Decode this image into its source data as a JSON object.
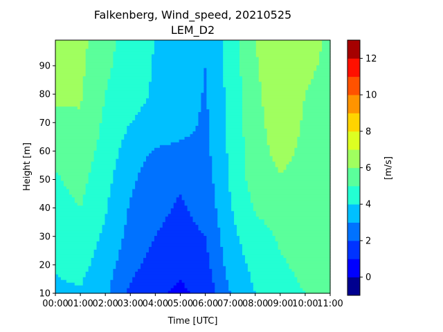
{
  "chart_data": {
    "type": "heatmap",
    "subtype": "filled-contour",
    "title_line1": "Falkenberg, Wind_speed, 20210525",
    "title_line2": "LEM_D2",
    "xlabel": "Time [UTC]",
    "ylabel": "Height [m]",
    "colorbar_label": "[m/s]",
    "xlim": [
      0,
      11
    ],
    "ylim": [
      10,
      99
    ],
    "x_ticks": [
      0,
      1,
      2,
      3,
      4,
      5,
      6,
      7,
      8,
      9,
      10,
      11
    ],
    "x_tick_labels": [
      "00:00",
      "01:00",
      "02:00",
      "03:00",
      "04:00",
      "05:00",
      "06:00",
      "07:00",
      "08:00",
      "09:00",
      "10:00",
      "11:00"
    ],
    "y_ticks": [
      10,
      20,
      30,
      40,
      50,
      60,
      70,
      80,
      90
    ],
    "y_tick_labels": [
      "10",
      "20",
      "30",
      "40",
      "50",
      "60",
      "70",
      "80",
      "90"
    ],
    "colorbar_ticks": [
      0,
      2,
      4,
      6,
      8,
      10,
      12
    ],
    "colorbar_tick_labels": [
      "0",
      "2",
      "4",
      "6",
      "8",
      "10",
      "12"
    ],
    "levels": [
      -1,
      0,
      1,
      2,
      3,
      4,
      5,
      6,
      7,
      8,
      9,
      10,
      11,
      12,
      13
    ],
    "level_colors": [
      "#00008f",
      "#0000ff",
      "#0033ff",
      "#0072ff",
      "#00c0ff",
      "#23ffd3",
      "#5bff9b",
      "#a0ff5f",
      "#ddff22",
      "#ffd400",
      "#ff9400",
      "#ff5200",
      "#ff1000",
      "#a50000"
    ],
    "grid": false,
    "x": [
      0,
      1,
      2,
      3,
      4,
      5,
      6,
      7,
      8,
      9,
      10,
      11
    ],
    "y": [
      10,
      20,
      30,
      40,
      50,
      60,
      70,
      80,
      90,
      99
    ],
    "z": [
      [
        3.8,
        3.9,
        3.2,
        1.8,
        1.2,
        0.8,
        1.3,
        3.0,
        4.0,
        4.7,
        5.0,
        5.3
      ],
      [
        4.1,
        4.3,
        3.5,
        2.3,
        1.6,
        1.2,
        1.7,
        3.4,
        4.3,
        4.9,
        5.2,
        5.4
      ],
      [
        4.4,
        4.7,
        3.8,
        2.7,
        2.0,
        1.7,
        2.0,
        3.7,
        4.6,
        5.1,
        5.3,
        5.5
      ],
      [
        4.6,
        5.0,
        4.1,
        2.9,
        2.2,
        1.9,
        2.3,
        3.9,
        5.1,
        5.4,
        5.5,
        5.6
      ],
      [
        4.9,
        5.3,
        4.3,
        3.2,
        2.4,
        2.1,
        2.5,
        4.1,
        5.5,
        5.9,
        5.7,
        5.6
      ],
      [
        5.2,
        5.6,
        4.6,
        3.5,
        2.9,
        2.7,
        2.7,
        4.2,
        5.6,
        6.3,
        5.8,
        5.7
      ],
      [
        5.7,
        5.9,
        4.8,
        4.0,
        3.7,
        3.5,
        2.8,
        4.3,
        5.7,
        6.5,
        5.9,
        5.8
      ],
      [
        6.2,
        6.1,
        5.0,
        4.3,
        3.9,
        3.7,
        2.9,
        4.3,
        5.8,
        6.6,
        6.0,
        5.8
      ],
      [
        6.6,
        6.2,
        5.2,
        4.5,
        3.9,
        3.8,
        3.0,
        4.4,
        5.9,
        6.7,
        6.1,
        5.9
      ],
      [
        7.0,
        6.3,
        5.3,
        4.6,
        4.0,
        3.9,
        3.0,
        4.4,
        6.0,
        6.8,
        6.2,
        5.9
      ]
    ]
  }
}
